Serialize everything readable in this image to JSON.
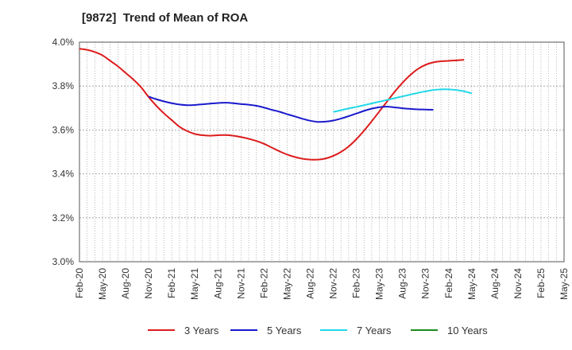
{
  "chart_data": {
    "type": "line",
    "title": "[9872]  Trend of Mean of ROA",
    "xlabel": "",
    "ylabel": "",
    "x_tick_labels": [
      "Feb-20",
      "May-20",
      "Aug-20",
      "Nov-20",
      "Feb-21",
      "May-21",
      "Aug-21",
      "Nov-21",
      "Feb-22",
      "May-22",
      "Aug-22",
      "Nov-22",
      "Feb-23",
      "May-23",
      "Aug-23",
      "Nov-23",
      "Feb-24",
      "May-24",
      "Aug-24",
      "Nov-24",
      "Feb-25",
      "May-25"
    ],
    "y_tick_labels": [
      "3.0%",
      "3.2%",
      "3.4%",
      "3.6%",
      "3.8%",
      "4.0%"
    ],
    "ylim": [
      3.0,
      4.0
    ],
    "grid": true,
    "legend_position": "bottom",
    "series": [
      {
        "name": "3 Years",
        "color": "#dd1c1c",
        "start_index": 0,
        "values": [
          3.97,
          3.965,
          3.955,
          3.94,
          3.915,
          3.89,
          3.86,
          3.83,
          3.795,
          3.75,
          3.71,
          3.675,
          3.645,
          3.615,
          3.595,
          3.582,
          3.576,
          3.574,
          3.576,
          3.577,
          3.574,
          3.568,
          3.56,
          3.55,
          3.537,
          3.52,
          3.503,
          3.488,
          3.477,
          3.469,
          3.465,
          3.465,
          3.47,
          3.482,
          3.5,
          3.525,
          3.558,
          3.597,
          3.64,
          3.685,
          3.73,
          3.775,
          3.815,
          3.85,
          3.878,
          3.897,
          3.908,
          3.913,
          3.915,
          3.917,
          3.92
        ]
      },
      {
        "name": "5 Years",
        "color": "#1a1acc",
        "start_index": 9,
        "values": [
          3.752,
          3.74,
          3.73,
          3.722,
          3.716,
          3.713,
          3.714,
          3.717,
          3.72,
          3.723,
          3.724,
          3.722,
          3.718,
          3.715,
          3.71,
          3.702,
          3.692,
          3.683,
          3.672,
          3.662,
          3.651,
          3.642,
          3.637,
          3.638,
          3.643,
          3.652,
          3.663,
          3.675,
          3.687,
          3.697,
          3.704,
          3.706,
          3.703,
          3.699,
          3.696,
          3.694,
          3.693,
          3.692
        ]
      },
      {
        "name": "7 Years",
        "color": "#22d8e8",
        "start_index": 33,
        "values": [
          3.682,
          3.69,
          3.698,
          3.705,
          3.713,
          3.721,
          3.729,
          3.737,
          3.745,
          3.753,
          3.761,
          3.769,
          3.776,
          3.782,
          3.785,
          3.785,
          3.782,
          3.776,
          3.767
        ]
      },
      {
        "name": "10 Years",
        "color": "#1d8a1d",
        "start_index": 0,
        "values": []
      }
    ]
  }
}
